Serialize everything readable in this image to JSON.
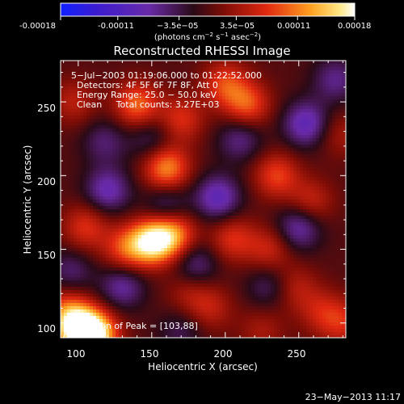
{
  "chart_data": {
    "type": "heatmap",
    "title": "Reconstructed RHESSI Image",
    "xlabel": "Heliocentric X (arcsec)",
    "ylabel": "Heliocentric Y (arcsec)",
    "xlim": [
      88,
      282
    ],
    "ylim": [
      90,
      278
    ],
    "x_ticks": [
      100,
      150,
      200,
      250
    ],
    "y_ticks": [
      100,
      150,
      200,
      250
    ],
    "colorbar": {
      "min": -0.00018,
      "max": 0.00018,
      "ticks": [
        "-0.00018",
        "-0.00011",
        "−3.5e−05",
        "3.5e−05",
        "0.00011",
        "0.00018"
      ],
      "unit_parts": [
        "(photons cm",
        "−2",
        " s",
        "−1",
        " asec",
        "−2",
        ")"
      ]
    },
    "annotations": [
      "5−Jul−2003 01:19:06.000 to 01:22:52.000",
      "Detectors: 4F 5F 6F 7F 8F, Att 0",
      "Energy Range: 25.0 − 50.0 keV",
      "Clean     Total counts: 3.27E+03"
    ],
    "peak_label": "Position of Peak = [103,88]",
    "peak_position": [
      103,
      88
    ],
    "blobs": [
      {
        "x": 101,
        "y": 95,
        "w": 0.00018
      },
      {
        "x": 112,
        "y": 92,
        "w": 0.00014
      },
      {
        "x": 92,
        "y": 108,
        "w": 8e-05
      },
      {
        "x": 150,
        "y": 155,
        "w": 0.00016
      },
      {
        "x": 165,
        "y": 160,
        "w": 0.00011
      },
      {
        "x": 132,
        "y": 150,
        "w": 8e-05
      },
      {
        "x": 105,
        "y": 165,
        "w": 7e-05
      },
      {
        "x": 205,
        "y": 157,
        "w": 7e-05
      },
      {
        "x": 230,
        "y": 150,
        "w": 6e-05
      },
      {
        "x": 160,
        "y": 205,
        "w": 0.00012
      },
      {
        "x": 235,
        "y": 200,
        "w": 8e-05
      },
      {
        "x": 258,
        "y": 182,
        "w": 6e-05
      },
      {
        "x": 140,
        "y": 248,
        "w": 0.0001
      },
      {
        "x": 170,
        "y": 238,
        "w": 7e-05
      },
      {
        "x": 215,
        "y": 248,
        "w": 9e-05
      },
      {
        "x": 200,
        "y": 262,
        "w": 8e-05
      },
      {
        "x": 97,
        "y": 250,
        "w": 5e-05
      },
      {
        "x": 265,
        "y": 108,
        "w": 5e-05
      },
      {
        "x": 280,
        "y": 100,
        "w": 6e-05
      },
      {
        "x": 190,
        "y": 110,
        "w": 5e-05
      },
      {
        "x": 225,
        "y": 95,
        "w": 4e-05
      },
      {
        "x": 247,
        "y": 124,
        "w": 5e-05
      },
      {
        "x": 278,
        "y": 228,
        "w": 4e-05
      },
      {
        "x": 175,
        "y": 120,
        "w": 4e-05
      },
      {
        "x": 130,
        "y": 125,
        "w": -7e-05
      },
      {
        "x": 250,
        "y": 165,
        "w": -8e-05
      },
      {
        "x": 255,
        "y": 235,
        "w": -9e-05
      },
      {
        "x": 275,
        "y": 265,
        "w": -6e-05
      },
      {
        "x": 195,
        "y": 185,
        "w": -9e-05
      },
      {
        "x": 160,
        "y": 180,
        "w": -6e-05
      },
      {
        "x": 120,
        "y": 190,
        "w": -8e-05
      },
      {
        "x": 180,
        "y": 140,
        "w": -6e-05
      },
      {
        "x": 210,
        "y": 225,
        "w": -6e-05
      },
      {
        "x": 150,
        "y": 225,
        "w": -5e-05
      },
      {
        "x": 95,
        "y": 135,
        "w": -5e-05
      },
      {
        "x": 230,
        "y": 125,
        "w": -5e-05
      },
      {
        "x": 170,
        "y": 95,
        "w": -4e-05
      },
      {
        "x": 118,
        "y": 223,
        "w": -5e-05
      }
    ]
  },
  "footer_date": "23−May−2013 11:17"
}
